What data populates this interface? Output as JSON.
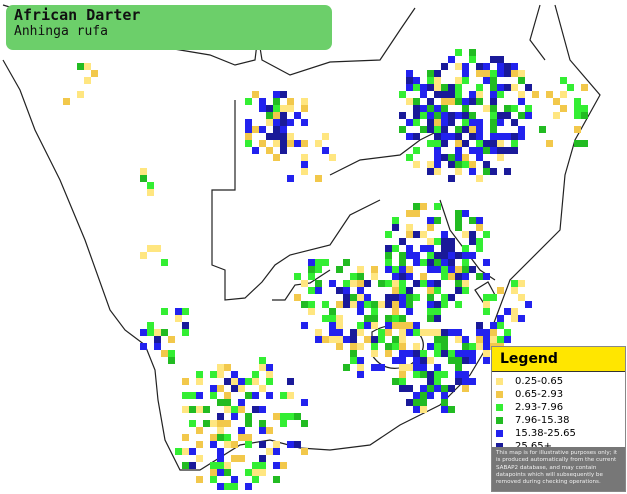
{
  "title": {
    "common_name": "African Darter",
    "scientific_name": "Anhinga rufa"
  },
  "legend": {
    "heading": "Legend",
    "items": [
      {
        "label": "0.25-0.65",
        "color": "#ffe680"
      },
      {
        "label": "0.65-2.93",
        "color": "#f2c84b"
      },
      {
        "label": "2.93-7.96",
        "color": "#33ee33"
      },
      {
        "label": "7.96-15.38",
        "color": "#22bb22"
      },
      {
        "label": "15.38-25.65",
        "color": "#2222ee"
      },
      {
        "label": "25.65+",
        "color": "#1a1a99"
      }
    ],
    "disclaimer": "This map is for illustrative purposes only; it is produced automatically from the current SABAP2 database, and may contain datapoints which will subsequently be removed during checking operations."
  },
  "colors": {
    "title_bg": "#6ccf6a",
    "legend_head_bg": "#ffe600",
    "land": "#ffffff",
    "border_line": "#222222"
  }
}
